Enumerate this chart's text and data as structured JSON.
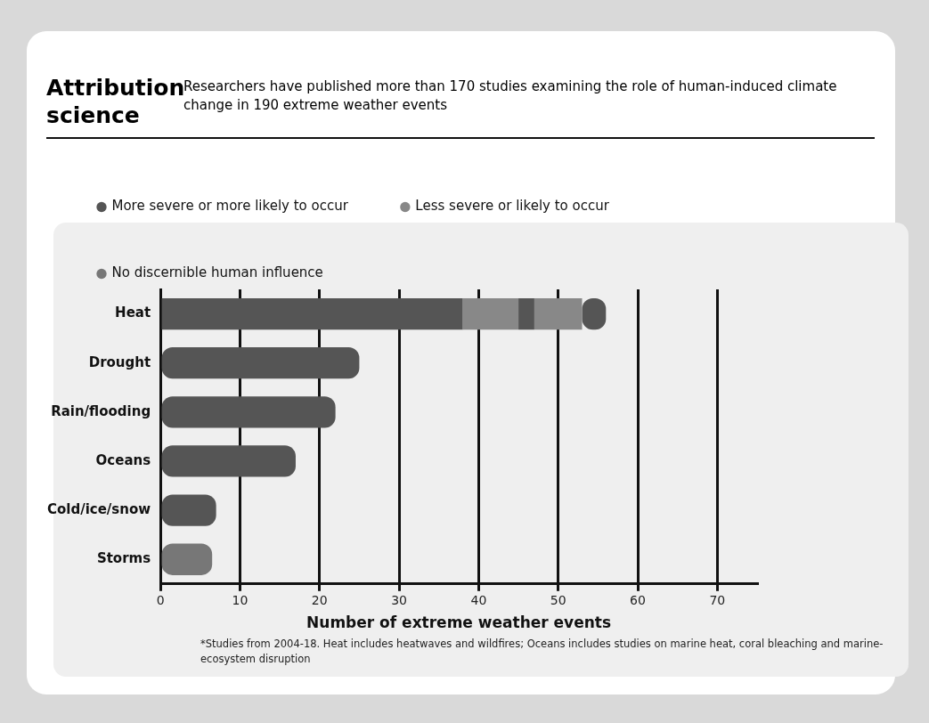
{
  "chart_data": {
    "type": "bar",
    "orientation": "horizontal",
    "stacked": true,
    "title": "Attribution science",
    "subtitle": "Researchers have published more than 170 studies examining the role of human-induced climate change in 190 extreme weather events",
    "xlabel": "Number of extreme weather events",
    "categories": [
      "Heat",
      "Drought",
      "Rain/flooding",
      "Oceans",
      "Cold/ice/snow",
      "Storms"
    ],
    "series": [
      {
        "name": "More severe or more likely to occur",
        "color": "#555555",
        "values": [
          38,
          25,
          22,
          17,
          7,
          null
        ]
      },
      {
        "name": "Less severe or likely to occur",
        "color": "#888888",
        "values": [
          7,
          null,
          null,
          null,
          null,
          null
        ]
      },
      {
        "color": "#555555",
        "values": [
          2,
          null,
          null,
          null,
          null,
          null
        ]
      },
      {
        "color": "#888888",
        "values": [
          6,
          null,
          null,
          null,
          null,
          null
        ]
      },
      {
        "color": "#555555",
        "values": [
          3,
          null,
          null,
          null,
          null,
          null
        ]
      },
      {
        "name": "No discernible human influence",
        "color": "#777777",
        "values": [
          null,
          null,
          null,
          null,
          null,
          6.5
        ]
      }
    ],
    "xlim": [
      0,
      75
    ],
    "xticks": [
      0,
      10,
      20,
      30,
      40,
      50,
      60,
      70
    ],
    "grid": "x",
    "legend": "top",
    "annotations": [
      "*Studies from 2004-18. Heat includes heatwaves and wildfires; Oceans includes studies on marine heat, coral bleaching and marine-ecosystem disruption"
    ]
  }
}
